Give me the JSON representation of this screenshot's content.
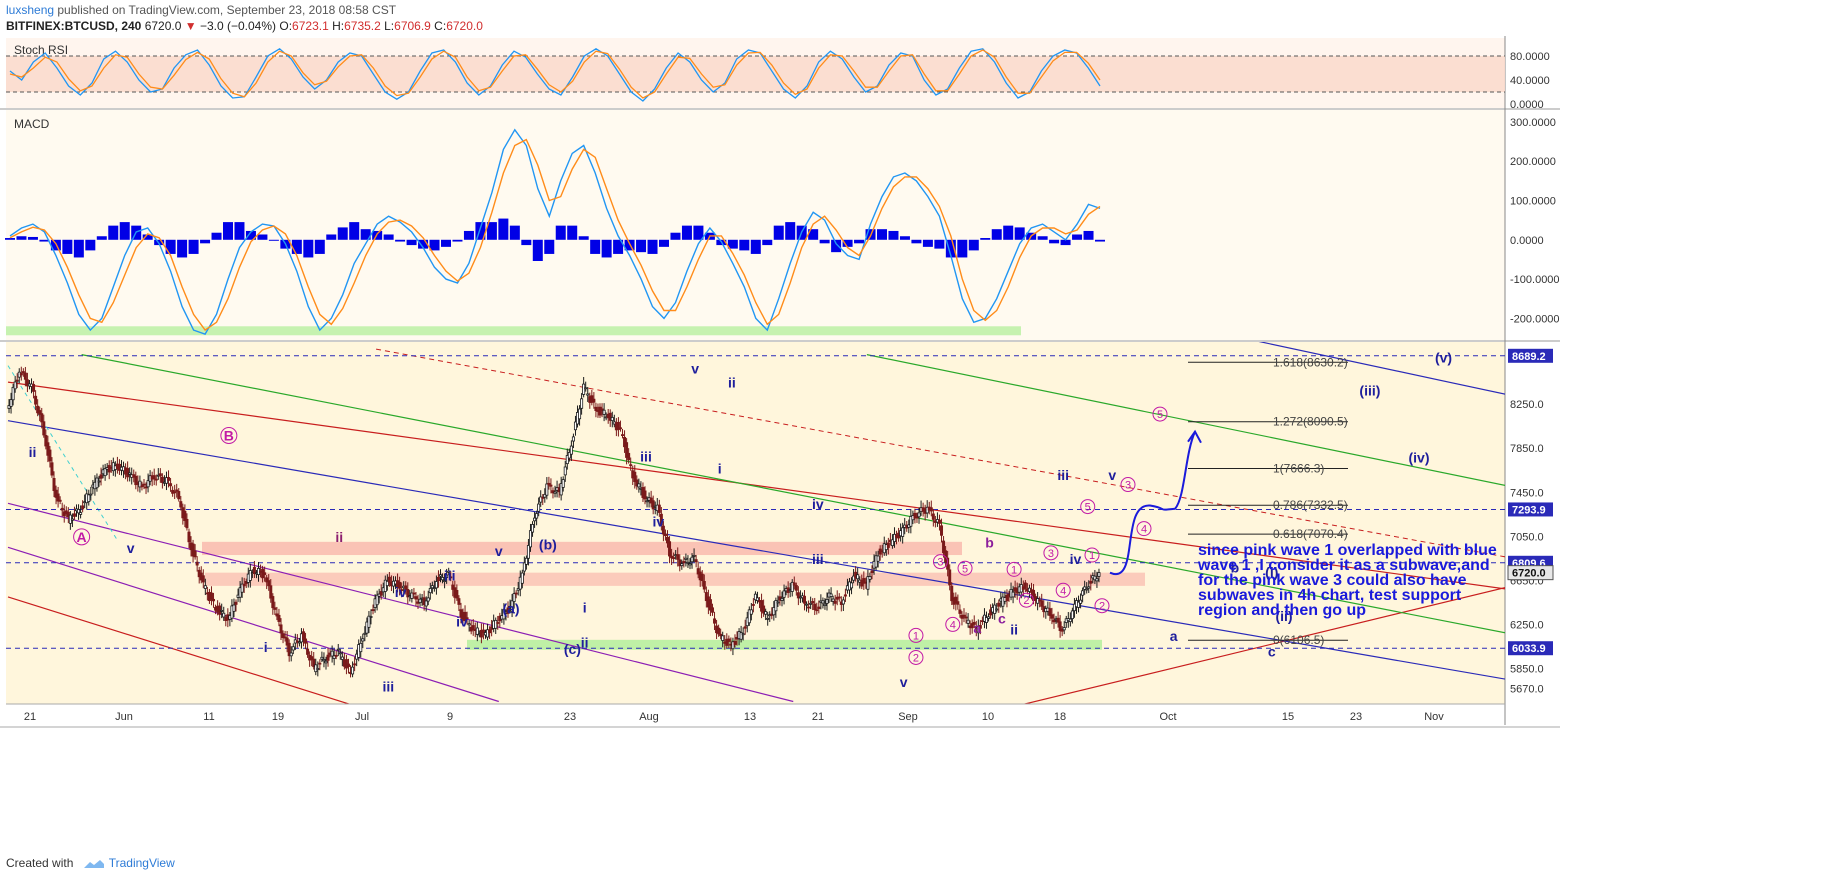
{
  "header": {
    "author": "luxsheng",
    "published": " published on TradingView.com, September 23, 2018 08:58 CST",
    "symbol": "BITFINEX:BTCUSD, 240",
    "last": " 6720.0",
    "arrow": "▼",
    "change": " −3.0 (−0.04%)",
    "o_label": " O:",
    "o_val": "6723.1",
    "h_label": " H:",
    "h_val": "6735.2",
    "l_label": " L:",
    "l_val": "6706.9",
    "c_label": " C:",
    "c_val": "6720.0"
  },
  "footer": {
    "created_with": "Created with",
    "brand": "TradingView"
  },
  "colors": {
    "up_candle": "#1c1c1c",
    "down_candle": "#7a1a1a",
    "macd": "#2196f3",
    "signal": "#ff8c1a",
    "hist": "#0000e6",
    "stoch_k": "#2196f3",
    "stoch_d": "#ff8c1a",
    "blue_channel": "#2a2ab8",
    "red_channel": "#c81e1e",
    "green_channel": "#2aa82a",
    "purple_channel": "#8c1eb4",
    "pink_zone": "#f7a8a0",
    "green_zone": "#b8f0a0",
    "note": "#1a1adb",
    "pink_label": "#c21aa6"
  },
  "chart_data": [
    {
      "type": "line",
      "name": "Stoch RSI",
      "title": "Stoch RSI",
      "ylim": [
        0,
        100
      ],
      "y_ticks": [
        "80.0000",
        "40.0000",
        "0.0000"
      ],
      "bands": [
        20,
        80
      ],
      "series": [
        {
          "name": "K",
          "values": [
            55,
            40,
            70,
            85,
            60,
            30,
            15,
            35,
            75,
            88,
            70,
            40,
            20,
            25,
            60,
            82,
            90,
            65,
            30,
            10,
            12,
            45,
            80,
            92,
            75,
            45,
            25,
            40,
            70,
            85,
            80,
            50,
            20,
            8,
            20,
            55,
            85,
            90,
            70,
            35,
            15,
            30,
            65,
            88,
            78,
            50,
            25,
            15,
            45,
            80,
            92,
            80,
            50,
            20,
            5,
            25,
            60,
            85,
            70,
            40,
            20,
            35,
            75,
            90,
            85,
            55,
            25,
            10,
            30,
            70,
            88,
            75,
            45,
            20,
            30,
            65,
            85,
            80,
            40,
            15,
            25,
            60,
            88,
            92,
            70,
            35,
            10,
            20,
            55,
            80,
            90,
            85,
            60,
            30
          ]
        },
        {
          "name": "D",
          "values": [
            50,
            45,
            60,
            78,
            70,
            42,
            22,
            30,
            60,
            82,
            78,
            50,
            28,
            25,
            48,
            74,
            86,
            75,
            42,
            18,
            12,
            35,
            70,
            88,
            80,
            52,
            32,
            38,
            62,
            80,
            82,
            60,
            30,
            14,
            18,
            45,
            75,
            88,
            78,
            45,
            22,
            28,
            55,
            80,
            82,
            58,
            32,
            20,
            38,
            70,
            88,
            84,
            58,
            28,
            10,
            20,
            50,
            78,
            76,
            50,
            28,
            32,
            65,
            85,
            86,
            65,
            35,
            16,
            25,
            60,
            82,
            80,
            55,
            28,
            28,
            55,
            80,
            82,
            50,
            22,
            22,
            50,
            80,
            90,
            78,
            45,
            18,
            18,
            45,
            72,
            86,
            86,
            68,
            40
          ]
        }
      ]
    },
    {
      "type": "line",
      "name": "MACD",
      "title": "MACD",
      "ylim": [
        -250,
        310
      ],
      "y_ticks": [
        "300.0000",
        "200.0000",
        "100.0000",
        "0.0000",
        "-100.0000",
        "-200.0000"
      ],
      "series": [
        {
          "name": "MACD",
          "values": [
            10,
            30,
            40,
            20,
            -40,
            -110,
            -190,
            -230,
            -200,
            -120,
            -40,
            20,
            30,
            -10,
            -80,
            -170,
            -230,
            -240,
            -190,
            -100,
            -20,
            20,
            40,
            35,
            -10,
            -80,
            -170,
            -230,
            -200,
            -140,
            -60,
            -10,
            40,
            60,
            45,
            20,
            -20,
            -70,
            -100,
            -110,
            -60,
            30,
            120,
            230,
            280,
            240,
            130,
            60,
            150,
            220,
            240,
            170,
            80,
            10,
            -40,
            -100,
            -170,
            -200,
            -160,
            -80,
            -10,
            30,
            -5,
            -60,
            -120,
            -200,
            -230,
            -150,
            -60,
            20,
            70,
            50,
            -10,
            -40,
            -50,
            40,
            110,
            160,
            170,
            150,
            110,
            60,
            -40,
            -150,
            -210,
            -200,
            -150,
            -80,
            -10,
            30,
            40,
            20,
            0,
            40,
            90,
            80
          ]
        },
        {
          "name": "Signal",
          "values": [
            5,
            20,
            32,
            25,
            -10,
            -70,
            -140,
            -200,
            -210,
            -160,
            -90,
            -20,
            15,
            5,
            -40,
            -120,
            -190,
            -230,
            -210,
            -150,
            -70,
            -5,
            25,
            35,
            15,
            -40,
            -120,
            -190,
            -215,
            -175,
            -110,
            -40,
            15,
            45,
            50,
            35,
            5,
            -40,
            -80,
            -105,
            -85,
            -20,
            70,
            170,
            240,
            255,
            190,
            100,
            110,
            180,
            230,
            210,
            130,
            50,
            -10,
            -65,
            -130,
            -180,
            -180,
            -120,
            -50,
            10,
            10,
            -35,
            -90,
            -160,
            -215,
            -190,
            -110,
            -20,
            40,
            60,
            25,
            -20,
            -40,
            10,
            80,
            135,
            160,
            160,
            130,
            85,
            10,
            -100,
            -180,
            -205,
            -180,
            -120,
            -45,
            10,
            30,
            30,
            15,
            25,
            65,
            85
          ]
        }
      ]
    },
    {
      "type": "line",
      "name": "BITFINEX:BTCUSD, 240",
      "ylim": [
        5600,
        8760
      ],
      "y_ticks": [
        "8250.0",
        "7850.0",
        "7450.0",
        "7050.0",
        "6650.0",
        "6250.0",
        "5850.0",
        "5670.0"
      ],
      "x_ticks": [
        "21",
        "Jun",
        "11",
        "19",
        "Jul",
        "9",
        "23",
        "Aug",
        "13",
        "21",
        "Sep",
        "10",
        "18",
        "Oct",
        "15",
        "23",
        "Nov"
      ],
      "price_badges": [
        "8689.2",
        "7293.9",
        "6809.6",
        "6720.0",
        "6033.9"
      ],
      "series": [
        {
          "name": "BTCUSD",
          "values": [
            8200,
            8550,
            8400,
            8000,
            7400,
            7200,
            7300,
            7500,
            7650,
            7700,
            7600,
            7500,
            7600,
            7550,
            7400,
            6950,
            6600,
            6400,
            6300,
            6550,
            6750,
            6700,
            6300,
            6000,
            6150,
            5850,
            5950,
            6000,
            5800,
            6150,
            6450,
            6650,
            6600,
            6500,
            6450,
            6650,
            6700,
            6350,
            6200,
            6150,
            6300,
            6400,
            6700,
            7250,
            7500,
            7450,
            7900,
            8400,
            8200,
            8150,
            8000,
            7600,
            7400,
            7300,
            6900,
            6800,
            6850,
            6500,
            6150,
            6050,
            6200,
            6500,
            6300,
            6500,
            6600,
            6450,
            6400,
            6500,
            6450,
            6700,
            6600,
            6900,
            7000,
            7100,
            7250,
            7300,
            7150,
            6500,
            6300,
            6200,
            6350,
            6450,
            6550,
            6600,
            6450,
            6350,
            6200,
            6400,
            6600,
            6720
          ]
        }
      ]
    }
  ],
  "wave_labels": [
    {
      "t": "ii",
      "x": 2,
      "p": 7770,
      "c": "#1e1e9c"
    },
    {
      "t": "B",
      "x": 18,
      "p": 7920,
      "c": "#c21aa6",
      "circle": true
    },
    {
      "t": "A",
      "x": 6,
      "p": 7000,
      "c": "#c21aa6",
      "circle": true
    },
    {
      "t": "v",
      "x": 10,
      "p": 6900,
      "c": "#1e1e9c"
    },
    {
      "t": "ii",
      "x": 27,
      "p": 7000,
      "c": "#8c1e6e"
    },
    {
      "t": "i",
      "x": 21,
      "p": 6000,
      "c": "#1e1e9c"
    },
    {
      "t": "iii",
      "x": 31,
      "p": 5640,
      "c": "#1e1e9c"
    },
    {
      "t": "iv",
      "x": 32,
      "p": 6500,
      "c": "#1e1e9c"
    },
    {
      "t": "iii",
      "x": 36,
      "p": 6650,
      "c": "#1e1e9c"
    },
    {
      "t": "iv",
      "x": 37,
      "p": 6230,
      "c": "#1e1e9c"
    },
    {
      "t": "v",
      "x": 40,
      "p": 6870,
      "c": "#1e1e9c"
    },
    {
      "t": "(a)",
      "x": 41,
      "p": 6350,
      "c": "#1e1e9c"
    },
    {
      "t": "(b)",
      "x": 44,
      "p": 6930,
      "c": "#1e1e9c"
    },
    {
      "t": "i",
      "x": 47,
      "p": 6360,
      "c": "#1e1e9c"
    },
    {
      "t": "(c)",
      "x": 46,
      "p": 5980,
      "c": "#1e1e9c"
    },
    {
      "t": "ii",
      "x": 47,
      "p": 6040,
      "c": "#1e1e9c"
    },
    {
      "t": "iii",
      "x": 52,
      "p": 7730,
      "c": "#1e1e9c"
    },
    {
      "t": "iv",
      "x": 53,
      "p": 7140,
      "c": "#1e1e9c"
    },
    {
      "t": "v",
      "x": 56,
      "p": 8530,
      "c": "#1e1e9c"
    },
    {
      "t": "ii",
      "x": 59,
      "p": 8400,
      "c": "#1e1e9c"
    },
    {
      "t": "i",
      "x": 58,
      "p": 7620,
      "c": "#1e1e9c"
    },
    {
      "t": "iv",
      "x": 66,
      "p": 7300,
      "c": "#1e1e9c"
    },
    {
      "t": "iii",
      "x": 66,
      "p": 6800,
      "c": "#1e1e9c"
    },
    {
      "t": "v",
      "x": 73,
      "p": 5680,
      "c": "#1e1e9c"
    },
    {
      "t": "iii",
      "x": 86,
      "p": 7560,
      "c": "#1e1e9c"
    },
    {
      "t": "v",
      "x": 90,
      "p": 7560,
      "c": "#1e1e9c"
    },
    {
      "t": "iv",
      "x": 87,
      "p": 6800,
      "c": "#1e1e9c"
    },
    {
      "t": "b",
      "x": 80,
      "p": 6950,
      "c": "#8c1e9c"
    },
    {
      "t": "a",
      "x": 79,
      "p": 6170,
      "c": "#8c1e9c"
    },
    {
      "t": "c",
      "x": 81,
      "p": 6260,
      "c": "#8c1e9c"
    },
    {
      "t": "ii",
      "x": 82,
      "p": 6160,
      "c": "#1e1e9c"
    },
    {
      "t": "a",
      "x": 95,
      "p": 6100,
      "c": "#1e1e9c"
    },
    {
      "t": "b",
      "x": 100,
      "p": 6720,
      "c": "#1e1e9c"
    },
    {
      "t": "(i)",
      "x": 103,
      "p": 6680,
      "c": "#1e1e9c"
    },
    {
      "t": "(ii)",
      "x": 104,
      "p": 6280,
      "c": "#1e1e9c"
    },
    {
      "t": "c",
      "x": 103,
      "p": 5960,
      "c": "#1e1e9c"
    },
    {
      "t": "(iii)",
      "x": 111,
      "p": 8330,
      "c": "#1e1e9c"
    },
    {
      "t": "(iv)",
      "x": 115,
      "p": 7720,
      "c": "#1e1e9c"
    },
    {
      "t": "(v)",
      "x": 117,
      "p": 8630,
      "c": "#1e1e9c"
    }
  ],
  "fib_levels": [
    {
      "label": "1.618(8630.2)",
      "p": 8630.2
    },
    {
      "label": "1.272(8090.5)",
      "p": 8090.5
    },
    {
      "label": "1(7666.3)",
      "p": 7666.3
    },
    {
      "label": "0.786(7332.5)",
      "p": 7332.5
    },
    {
      "label": "0.618(7070.4)",
      "p": 7070.4
    },
    {
      "label": "0(6106.5)",
      "p": 6106.5
    }
  ],
  "note": {
    "lines": [
      "since pink wave 1 overlapped with blue",
      "wave 1 ,I consider it as a subwave,and",
      "for the pink wave 3 could also have",
      "subwaves in 4h chart, test support",
      "region and then go up"
    ]
  }
}
